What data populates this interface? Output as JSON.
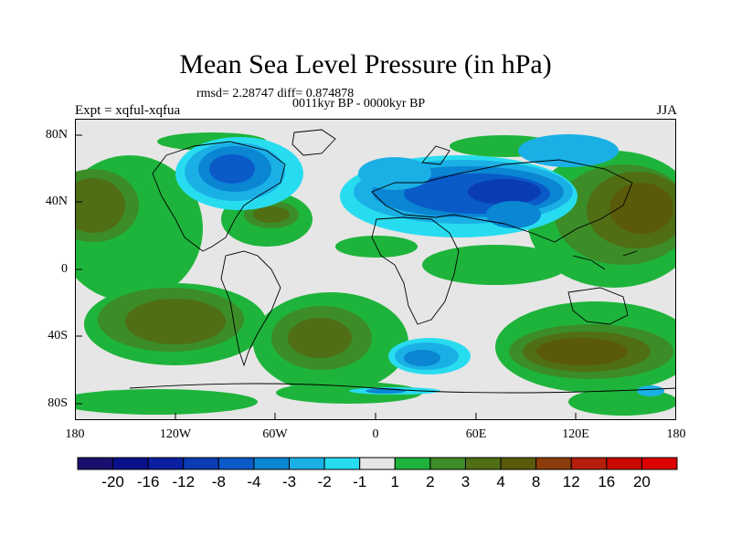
{
  "chart_data": {
    "type": "heatmap",
    "title": "Mean Sea Level Pressure (in hPa)",
    "stats_text": "rmsd= 2.28747 diff= 0.874878",
    "period_text": "0011kyr BP - 0000kyr BP",
    "left_label": "Expt = xqful-xqfua",
    "right_label": "JJA",
    "lon_range": [
      -180,
      180
    ],
    "lat_range": [
      -90,
      90
    ],
    "x_ticks": [
      "180",
      "120W",
      "60W",
      "0",
      "60E",
      "120E",
      "180"
    ],
    "x_tick_values": [
      -180,
      -120,
      -60,
      0,
      60,
      120,
      180
    ],
    "y_ticks": [
      "80N",
      "40N",
      "0",
      "40S",
      "80S"
    ],
    "y_tick_values": [
      80,
      40,
      0,
      -40,
      -80
    ],
    "colorbar_labels": [
      "-20",
      "-16",
      "-12",
      "-8",
      "-4",
      "-3",
      "-2",
      "-1",
      "1",
      "2",
      "3",
      "4",
      "8",
      "12",
      "16",
      "20"
    ],
    "colorbar_colors": [
      "#1a0f6e",
      "#0a108a",
      "#0a20a0",
      "#0a3cb4",
      "#0a5ac8",
      "#0a86d2",
      "#1ab0e6",
      "#28dcf0",
      "#e6e6e6",
      "#1eb43c",
      "#3c8c28",
      "#506e14",
      "#5a5a0a",
      "#8c3c0a",
      "#b41e0a",
      "#c80a00",
      "#dc0000"
    ],
    "anomaly_regions": [
      {
        "name": "N America low",
        "lon": -90,
        "lat": 55,
        "rlon": 28,
        "rlat": 15,
        "value": -4
      },
      {
        "name": "Eurasia low",
        "lon": 55,
        "lat": 45,
        "rlon": 55,
        "rlat": 16,
        "value": -4
      },
      {
        "name": "Southern Ocean low",
        "lon": 30,
        "lat": -50,
        "rlon": 22,
        "rlat": 8,
        "value": -3
      },
      {
        "name": "N Pacific high",
        "lon": 155,
        "lat": 35,
        "rlon": 35,
        "rlat": 22,
        "value": 4
      },
      {
        "name": "NE Pacific high",
        "lon": -175,
        "lat": 40,
        "rlon": 25,
        "rlat": 20,
        "value": 4
      },
      {
        "name": "S Pacific high",
        "lon": -150,
        "lat": -35,
        "rlon": 50,
        "rlat": 18,
        "value": 3
      },
      {
        "name": "S Atlantic high",
        "lon": -35,
        "lat": -40,
        "rlon": 25,
        "rlat": 15,
        "value": 3
      },
      {
        "name": "S Indian high",
        "lon": 110,
        "lat": -45,
        "rlon": 50,
        "rlat": 14,
        "value": 4
      },
      {
        "name": "N Atlantic high",
        "lon": -50,
        "lat": 35,
        "rlon": 15,
        "rlat": 8,
        "value": 3
      }
    ]
  }
}
